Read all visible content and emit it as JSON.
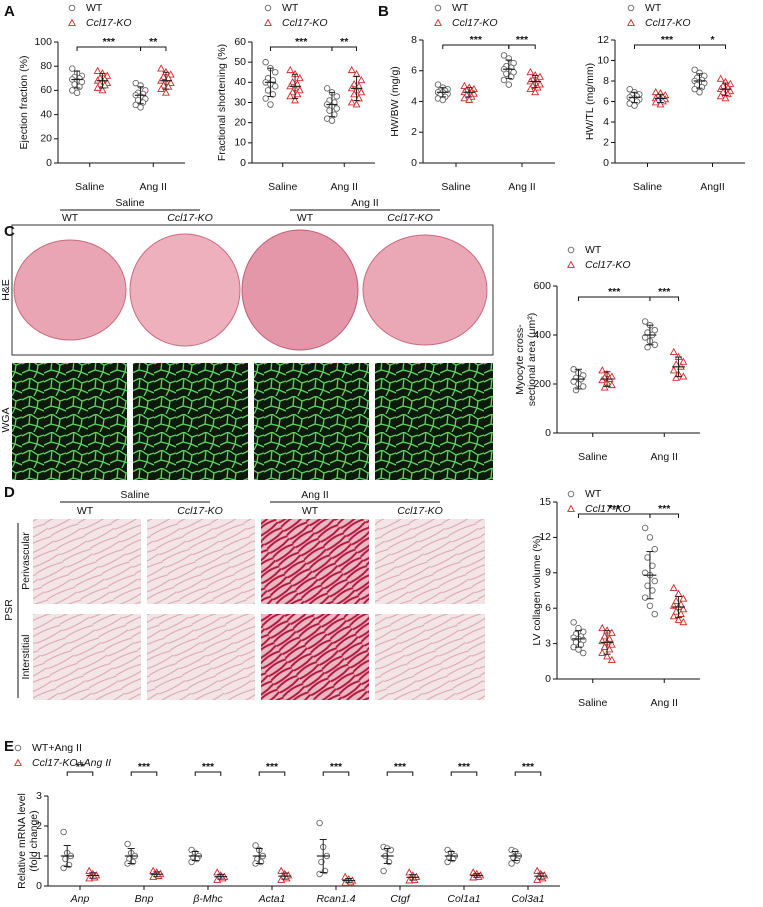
{
  "figure": {
    "panel_letters": [
      "A",
      "B",
      "C",
      "D",
      "E"
    ],
    "C": {
      "groups": [
        "Saline",
        "Ang II"
      ],
      "columns": [
        "WT",
        "Ccl17-KO",
        "WT",
        "Ccl17-KO"
      ],
      "rows": [
        "H&E",
        "WGA"
      ]
    },
    "D": {
      "groups": [
        "Saline",
        "Ang II"
      ],
      "columns": [
        "WT",
        "Ccl17-KO",
        "WT",
        "Ccl17-KO"
      ],
      "stain": "PSR",
      "rows": [
        "Perivascular",
        "Interstitial"
      ]
    }
  },
  "chart_data": [
    {
      "type": "dot-plot",
      "ylabel": "Ejection fraction (%)",
      "categories": [
        "Saline",
        "Ang II"
      ],
      "ylim": [
        0,
        100
      ],
      "yticks": [
        0,
        20,
        40,
        60,
        80,
        100
      ],
      "series": [
        {
          "name": "WT",
          "color": "#666666",
          "marker": "circle",
          "values": [
            [
              78,
              74,
              72,
              71,
              70,
              69,
              68,
              67,
              65,
              63,
              60,
              58
            ],
            [
              66,
              64,
              60,
              58,
              57,
              56,
              55,
              53,
              52,
              50,
              48,
              46
            ]
          ],
          "means": [
            69,
            56
          ],
          "sds": [
            7,
            7
          ]
        },
        {
          "name": "Ccl17-KO",
          "color": "#d62728",
          "marker": "triangle",
          "values": [
            [
              76,
              74,
              72,
              70,
              69,
              68,
              67,
              66,
              65,
              64,
              62,
              60
            ],
            [
              78,
              75,
              73,
              71,
              70,
              68,
              67,
              66,
              64,
              63,
              61,
              58
            ]
          ],
          "means": [
            68,
            68
          ],
          "sds": [
            6,
            7
          ]
        }
      ],
      "annotations": [
        "***",
        "**"
      ]
    },
    {
      "type": "dot-plot",
      "ylabel": "Fractional shortening (%)",
      "categories": [
        "Saline",
        "Ang II"
      ],
      "ylim": [
        0,
        60
      ],
      "yticks": [
        0,
        10,
        20,
        30,
        40,
        50,
        60
      ],
      "series": [
        {
          "name": "WT",
          "color": "#666666",
          "marker": "circle",
          "values": [
            [
              50,
              47,
              45,
              42,
              41,
              40,
              39,
              38,
              36,
              34,
              32,
              29
            ],
            [
              37,
              35,
              33,
              31,
              30,
              29,
              28,
              27,
              26,
              24,
              22,
              21
            ]
          ],
          "means": [
            40,
            29
          ],
          "sds": [
            7,
            6
          ]
        },
        {
          "name": "Ccl17-KO",
          "color": "#d62728",
          "marker": "triangle",
          "values": [
            [
              46,
              44,
              42,
              40,
              39,
              38,
              37,
              36,
              35,
              34,
              33,
              31
            ],
            [
              46,
              44,
              41,
              39,
              38,
              37,
              36,
              35,
              34,
              32,
              30,
              29
            ]
          ],
          "means": [
            38,
            37
          ],
          "sds": [
            6,
            6
          ]
        }
      ],
      "annotations": [
        "***",
        "**"
      ]
    },
    {
      "type": "dot-plot",
      "ylabel": "HW/BW (mg/g)",
      "categories": [
        "Saline",
        "Ang II"
      ],
      "ylim": [
        0,
        8
      ],
      "yticks": [
        0,
        2,
        4,
        6,
        8
      ],
      "series": [
        {
          "name": "WT",
          "color": "#666666",
          "marker": "circle",
          "values": [
            [
              5.1,
              4.9,
              4.8,
              4.7,
              4.7,
              4.6,
              4.6,
              4.5,
              4.4,
              4.3,
              4.2,
              4.1
            ],
            [
              7.0,
              6.8,
              6.5,
              6.3,
              6.2,
              6.1,
              6.0,
              5.9,
              5.8,
              5.6,
              5.4,
              5.1
            ]
          ],
          "means": [
            4.6,
            6.1
          ],
          "sds": [
            0.3,
            0.6
          ]
        },
        {
          "name": "Ccl17-KO",
          "color": "#d62728",
          "marker": "triangle",
          "values": [
            [
              5.0,
              4.9,
              4.8,
              4.7,
              4.6,
              4.6,
              4.5,
              4.5,
              4.4,
              4.3,
              4.2,
              4.1
            ],
            [
              5.9,
              5.7,
              5.6,
              5.4,
              5.3,
              5.3,
              5.2,
              5.1,
              5.0,
              4.9,
              4.8,
              4.6
            ]
          ],
          "means": [
            4.6,
            5.3
          ],
          "sds": [
            0.3,
            0.4
          ]
        }
      ],
      "annotations": [
        "***",
        "***"
      ]
    },
    {
      "type": "dot-plot",
      "ylabel": "HW/TL (mg/mm)",
      "categories": [
        "Saline",
        "AngII"
      ],
      "ylim": [
        0,
        12
      ],
      "yticks": [
        0,
        2,
        4,
        6,
        8,
        10,
        12
      ],
      "series": [
        {
          "name": "WT",
          "color": "#666666",
          "marker": "circle",
          "values": [
            [
              7.2,
              6.9,
              6.7,
              6.6,
              6.5,
              6.4,
              6.3,
              6.2,
              6.1,
              6.0,
              5.8,
              5.6
            ],
            [
              9.1,
              8.8,
              8.5,
              8.3,
              8.1,
              8.0,
              7.9,
              7.8,
              7.6,
              7.4,
              7.2,
              6.9
            ]
          ],
          "means": [
            6.4,
            8.0
          ],
          "sds": [
            0.5,
            0.7
          ]
        },
        {
          "name": "Ccl17-KO",
          "color": "#d62728",
          "marker": "triangle",
          "values": [
            [
              6.9,
              6.8,
              6.6,
              6.5,
              6.4,
              6.3,
              6.3,
              6.2,
              6.1,
              6.0,
              5.9,
              5.7
            ],
            [
              8.2,
              7.9,
              7.7,
              7.5,
              7.3,
              7.2,
              7.1,
              7.0,
              6.9,
              6.7,
              6.5,
              6.3
            ]
          ],
          "means": [
            6.3,
            7.2
          ],
          "sds": [
            0.4,
            0.6
          ]
        }
      ],
      "annotations": [
        "***",
        "*"
      ]
    },
    {
      "type": "dot-plot",
      "ylabel": [
        "Myocyte cross-",
        "sectional area (μm²)"
      ],
      "categories": [
        "Saline",
        "Ang II"
      ],
      "ylim": [
        0,
        600
      ],
      "yticks": [
        0,
        200,
        400,
        600
      ],
      "series": [
        {
          "name": "WT",
          "color": "#666666",
          "marker": "circle",
          "values": [
            [
              260,
              245,
              235,
              225,
              220,
              210,
              200,
              190,
              175
            ],
            [
              455,
              440,
              420,
              410,
              400,
              390,
              375,
              360,
              350
            ]
          ],
          "means": [
            220,
            400
          ],
          "sds": [
            40,
            40
          ]
        },
        {
          "name": "Ccl17-KO",
          "color": "#d62728",
          "marker": "triangle",
          "values": [
            [
              255,
              240,
              230,
              225,
              220,
              215,
              205,
              195,
              185
            ],
            [
              330,
              310,
              290,
              280,
              270,
              255,
              240,
              230,
              225
            ]
          ],
          "means": [
            220,
            270
          ],
          "sds": [
            30,
            40
          ]
        }
      ],
      "annotations": [
        "***",
        "***"
      ]
    },
    {
      "type": "dot-plot",
      "ylabel": "LV collagen volume (%)",
      "categories": [
        "Saline",
        "Ang II"
      ],
      "ylim": [
        0,
        15
      ],
      "yticks": [
        0,
        3,
        6,
        9,
        12,
        15
      ],
      "series": [
        {
          "name": "WT",
          "color": "#666666",
          "marker": "circle",
          "values": [
            [
              4.8,
              4.3,
              4.0,
              3.8,
              3.6,
              3.5,
              3.4,
              3.3,
              3.1,
              2.9,
              2.7,
              2.5,
              2.2
            ],
            [
              12.8,
              12.0,
              11.0,
              10.3,
              9.6,
              9.0,
              8.8,
              8.3,
              7.9,
              7.5,
              6.9,
              6.2,
              5.5
            ]
          ],
          "means": [
            3.4,
            8.8
          ],
          "sds": [
            0.7,
            2
          ]
        },
        {
          "name": "Ccl17-KO",
          "color": "#d62728",
          "marker": "triangle",
          "values": [
            [
              4.3,
              4.1,
              3.9,
              3.6,
              3.4,
              3.2,
              3.1,
              2.9,
              2.7,
              2.5,
              2.2,
              1.9,
              1.6
            ],
            [
              7.7,
              7.2,
              6.8,
              6.6,
              6.3,
              6.2,
              6.1,
              5.9,
              5.7,
              5.5,
              5.3,
              5.0,
              4.8
            ]
          ],
          "means": [
            3.1,
            6.1
          ],
          "sds": [
            1.0,
            0.9
          ]
        }
      ],
      "annotations": [
        "***",
        "***"
      ]
    },
    {
      "type": "dot-plot",
      "ylabel": [
        "Relative mRNA level",
        "(fold change)"
      ],
      "categories": [
        "Anp",
        "Bnp",
        "β-Mhc",
        "Acta1",
        "Rcan1.4",
        "Ctgf",
        "Col1a1",
        "Col3a1"
      ],
      "ylim": [
        0,
        3
      ],
      "yticks": [
        0,
        1,
        2,
        3
      ],
      "series": [
        {
          "name": "WT+Ang II",
          "color": "#666666",
          "marker": "circle",
          "values": [
            [
              1.8,
              1.1,
              1.0,
              0.9,
              0.7,
              0.6
            ],
            [
              1.4,
              1.1,
              1.0,
              0.9,
              0.8,
              0.75
            ],
            [
              1.2,
              1.1,
              1.0,
              0.95,
              0.9,
              0.8
            ],
            [
              1.35,
              1.2,
              1.0,
              0.9,
              0.8,
              0.75
            ],
            [
              2.1,
              1.3,
              1.0,
              0.8,
              0.5,
              0.4
            ],
            [
              1.3,
              1.25,
              1.2,
              1.0,
              0.8,
              0.5
            ],
            [
              1.2,
              1.1,
              1.0,
              0.95,
              0.9,
              0.8
            ],
            [
              1.2,
              1.15,
              1.0,
              0.95,
              0.85,
              0.75
            ]
          ],
          "means": [
            1.0,
            1.0,
            1.0,
            1.0,
            1.0,
            1.0,
            1.0,
            1.0
          ],
          "sds": [
            0.35,
            0.25,
            0.15,
            0.25,
            0.55,
            0.25,
            0.15,
            0.15
          ]
        },
        {
          "name": "Ccl17-KO+Ang II",
          "color": "#d62728",
          "marker": "triangle",
          "values": [
            [
              0.5,
              0.4,
              0.35,
              0.3,
              0.28,
              0.25
            ],
            [
              0.5,
              0.45,
              0.4,
              0.35,
              0.33,
              0.3
            ],
            [
              0.45,
              0.35,
              0.3,
              0.28,
              0.25,
              0.2
            ],
            [
              0.5,
              0.4,
              0.35,
              0.3,
              0.25,
              0.2
            ],
            [
              0.3,
              0.22,
              0.18,
              0.15,
              0.12,
              0.1
            ],
            [
              0.45,
              0.35,
              0.3,
              0.25,
              0.2,
              0.18
            ],
            [
              0.45,
              0.4,
              0.35,
              0.33,
              0.3,
              0.28
            ],
            [
              0.5,
              0.4,
              0.35,
              0.3,
              0.25,
              0.2
            ]
          ],
          "means": [
            0.35,
            0.39,
            0.31,
            0.33,
            0.18,
            0.29,
            0.35,
            0.33
          ],
          "sds": [
            0.09,
            0.08,
            0.08,
            0.1,
            0.07,
            0.09,
            0.06,
            0.1
          ]
        }
      ],
      "annotations": [
        "**",
        "***",
        "***",
        "***",
        "***",
        "***",
        "***",
        "***"
      ]
    }
  ]
}
